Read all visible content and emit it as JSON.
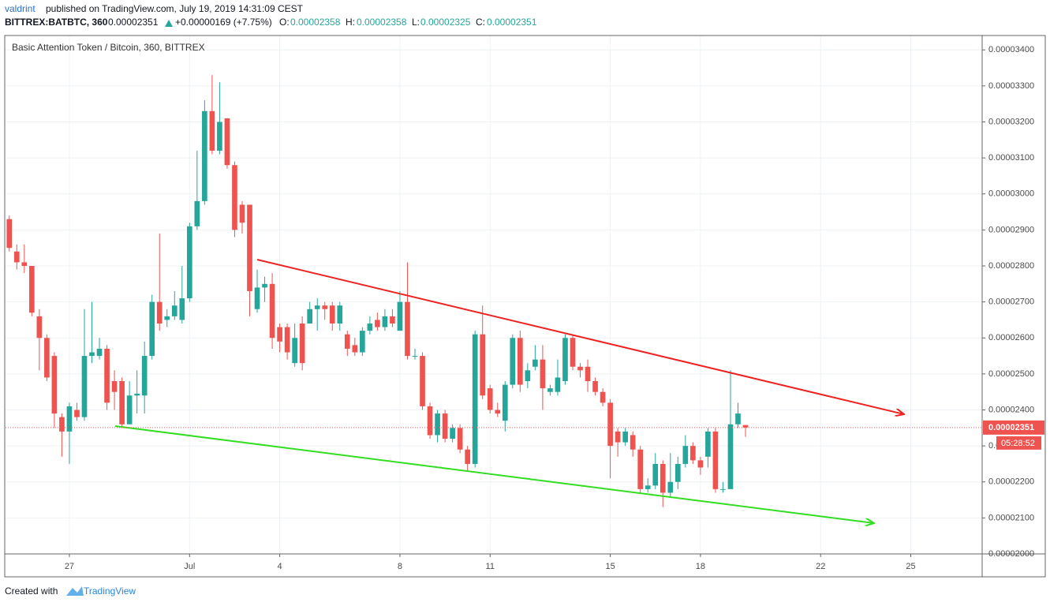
{
  "header": {
    "author": "valdrint",
    "published": "published on TradingView.com, July 19, 2019 14:31:09 CEST",
    "symbol": "BITTREX:BATBTC, 360",
    "last": "0.00002351",
    "change": "+0.00000169 (+7.75%)",
    "o_label": "O:",
    "o": "0.00002358",
    "h_label": "H:",
    "h": "0.00002358",
    "l_label": "L:",
    "l": "0.00002325",
    "c_label": "C:",
    "c": "0.00002351"
  },
  "chart_data": {
    "type": "candlestick",
    "title": "Basic Attention Token / Bitcoin, 360, BITTREX",
    "up_color": "#26a69a",
    "down_color": "#ef5350",
    "grid": true,
    "xlim": [
      -0.5,
      129.5
    ],
    "xticks": [
      {
        "value": 8,
        "label": "27"
      },
      {
        "value": 24,
        "label": "Jul"
      },
      {
        "value": 36,
        "label": "4"
      },
      {
        "value": 52,
        "label": "8"
      },
      {
        "value": 64,
        "label": "11"
      },
      {
        "value": 80,
        "label": "15"
      },
      {
        "value": 92,
        "label": "18"
      },
      {
        "value": 108,
        "label": "22"
      },
      {
        "value": 120,
        "label": "25"
      }
    ],
    "ylim": [
      2e-05,
      3.44e-05
    ],
    "yticks": [
      {
        "value": 2e-05,
        "label": "0.00002000"
      },
      {
        "value": 2.1e-05,
        "label": "0.00002100"
      },
      {
        "value": 2.2e-05,
        "label": "0.00002200"
      },
      {
        "value": 2.3e-05,
        "label": "0.00002300"
      },
      {
        "value": 2.4e-05,
        "label": "0.00002400"
      },
      {
        "value": 2.5e-05,
        "label": "0.00002500"
      },
      {
        "value": 2.6e-05,
        "label": "0.00002600"
      },
      {
        "value": 2.7e-05,
        "label": "0.00002700"
      },
      {
        "value": 2.8e-05,
        "label": "0.00002800"
      },
      {
        "value": 2.9e-05,
        "label": "0.00002900"
      },
      {
        "value": 3e-05,
        "label": "0.00003000"
      },
      {
        "value": 3.1e-05,
        "label": "0.00003100"
      },
      {
        "value": 3.2e-05,
        "label": "0.00003200"
      },
      {
        "value": 3.3e-05,
        "label": "0.00003300"
      },
      {
        "value": 3.4e-05,
        "label": "0.00003400"
      }
    ],
    "last_price": {
      "value": 2.351e-05,
      "label": "0.00002351"
    },
    "countdown": "05:28:52",
    "open": [
      2.93e-05,
      2.84e-05,
      2.81e-05,
      2.8e-05,
      2.66e-05,
      2.6e-05,
      2.55e-05,
      2.38e-05,
      2.34e-05,
      2.4e-05,
      2.38e-05,
      2.55e-05,
      2.55e-05,
      2.57e-05,
      2.48e-05,
      2.48e-05,
      2.36e-05,
      2.44e-05,
      2.44e-05,
      2.55e-05,
      2.7e-05,
      2.65e-05,
      2.66e-05,
      2.65e-05,
      2.71e-05,
      2.91e-05,
      2.98e-05,
      3.23e-05,
      3.12e-05,
      3.21e-05,
      3.08e-05,
      2.97e-05,
      2.97e-05,
      2.68e-05,
      2.74e-05,
      2.75e-05,
      2.63e-05,
      2.63e-05,
      2.53e-05,
      2.64e-05,
      2.64e-05,
      2.68e-05,
      2.69e-05,
      2.69e-05,
      2.64e-05,
      2.61e-05,
      2.58e-05,
      2.56e-05,
      2.62e-05,
      2.65e-05,
      2.63e-05,
      2.66e-05,
      2.62e-05,
      2.7e-05,
      2.55e-05,
      2.55e-05,
      2.41e-05,
      2.33e-05,
      2.39e-05,
      2.32e-05,
      2.35e-05,
      2.29e-05,
      2.25e-05,
      2.61e-05,
      2.46e-05,
      2.4e-05,
      2.37e-05,
      2.47e-05,
      2.6e-05,
      2.48e-05,
      2.52e-05,
      2.54e-05,
      2.45e-05,
      2.45e-05,
      2.48e-05,
      2.6e-05,
      2.52e-05,
      2.52e-05,
      2.48e-05,
      2.45e-05,
      2.42e-05,
      2.34e-05,
      2.31e-05,
      2.33e-05,
      2.29e-05,
      2.18e-05,
      2.19e-05,
      2.25e-05,
      2.17e-05,
      2.2e-05,
      2.25e-05,
      2.3e-05,
      2.26e-05,
      2.27e-05,
      2.34e-05,
      2.18e-05,
      2.18e-05,
      2.36e-05,
      2.358e-05
    ],
    "high": [
      2.94e-05,
      2.86e-05,
      2.86e-05,
      2.8e-05,
      2.68e-05,
      2.61e-05,
      2.56e-05,
      2.39e-05,
      2.42e-05,
      2.42e-05,
      2.68e-05,
      2.7e-05,
      2.6e-05,
      2.58e-05,
      2.51e-05,
      2.49e-05,
      2.48e-05,
      2.51e-05,
      2.59e-05,
      2.72e-05,
      2.89e-05,
      2.68e-05,
      2.73e-05,
      2.8e-05,
      2.92e-05,
      3.12e-05,
      3.26e-05,
      3.33e-05,
      3.31e-05,
      3.21e-05,
      3.09e-05,
      2.98e-05,
      2.97e-05,
      2.79e-05,
      2.77e-05,
      2.78e-05,
      2.64e-05,
      2.64e-05,
      2.64e-05,
      2.66e-05,
      2.7e-05,
      2.71e-05,
      2.7e-05,
      2.7e-05,
      2.7e-05,
      2.62e-05,
      2.6e-05,
      2.63e-05,
      2.66e-05,
      2.67e-05,
      2.68e-05,
      2.68e-05,
      2.73e-05,
      2.81e-05,
      2.57e-05,
      2.56e-05,
      2.42e-05,
      2.4e-05,
      2.4e-05,
      2.36e-05,
      2.36e-05,
      2.3e-05,
      2.62e-05,
      2.69e-05,
      2.47e-05,
      2.42e-05,
      2.48e-05,
      2.61e-05,
      2.62e-05,
      2.53e-05,
      2.58e-05,
      2.58e-05,
      2.47e-05,
      2.54e-05,
      2.61e-05,
      2.61e-05,
      2.53e-05,
      2.54e-05,
      2.49e-05,
      2.46e-05,
      2.43e-05,
      2.35e-05,
      2.35e-05,
      2.34e-05,
      2.3e-05,
      2.21e-05,
      2.28e-05,
      2.26e-05,
      2.28e-05,
      2.27e-05,
      2.33e-05,
      2.31e-05,
      2.27e-05,
      2.35e-05,
      2.35e-05,
      2.2e-05,
      2.51e-05,
      2.42e-05,
      2.358e-05
    ],
    "low": [
      2.84e-05,
      2.79e-05,
      2.78e-05,
      2.66e-05,
      2.51e-05,
      2.48e-05,
      2.35e-05,
      2.27e-05,
      2.25e-05,
      2.37e-05,
      2.37e-05,
      2.53e-05,
      2.54e-05,
      2.4e-05,
      2.4e-05,
      2.35e-05,
      2.36e-05,
      2.39e-05,
      2.39e-05,
      2.54e-05,
      2.62e-05,
      2.63e-05,
      2.65e-05,
      2.64e-05,
      2.7e-05,
      2.9e-05,
      2.97e-05,
      3.11e-05,
      3.11e-05,
      3.07e-05,
      2.88e-05,
      2.89e-05,
      2.66e-05,
      2.67e-05,
      2.7e-05,
      2.57e-05,
      2.56e-05,
      2.54e-05,
      2.52e-05,
      2.51e-05,
      2.64e-05,
      2.62e-05,
      2.65e-05,
      2.62e-05,
      2.62e-05,
      2.55e-05,
      2.55e-05,
      2.55e-05,
      2.61e-05,
      2.62e-05,
      2.62e-05,
      2.63e-05,
      2.62e-05,
      2.54e-05,
      2.54e-05,
      2.4e-05,
      2.32e-05,
      2.31e-05,
      2.31e-05,
      2.31e-05,
      2.28e-05,
      2.23e-05,
      2.24e-05,
      2.43e-05,
      2.39e-05,
      2.38e-05,
      2.34e-05,
      2.46e-05,
      2.45e-05,
      2.46e-05,
      2.51e-05,
      2.4e-05,
      2.44e-05,
      2.44e-05,
      2.47e-05,
      2.51e-05,
      2.49e-05,
      2.45e-05,
      2.44e-05,
      2.41e-05,
      2.21e-05,
      2.27e-05,
      2.3e-05,
      2.27e-05,
      2.17e-05,
      2.17e-05,
      2.18e-05,
      2.13e-05,
      2.16e-05,
      2.18e-05,
      2.24e-05,
      2.25e-05,
      2.22e-05,
      2.24e-05,
      2.17e-05,
      2.17e-05,
      2.18e-05,
      2.35e-05,
      2.325e-05
    ],
    "close": [
      2.85e-05,
      2.81e-05,
      2.8e-05,
      2.67e-05,
      2.6e-05,
      2.49e-05,
      2.39e-05,
      2.34e-05,
      2.41e-05,
      2.38e-05,
      2.55e-05,
      2.56e-05,
      2.57e-05,
      2.42e-05,
      2.45e-05,
      2.36e-05,
      2.44e-05,
      2.445e-05,
      2.55e-05,
      2.7e-05,
      2.64e-05,
      2.66e-05,
      2.69e-05,
      2.71e-05,
      2.91e-05,
      2.98e-05,
      3.23e-05,
      3.12e-05,
      3.2e-05,
      3.08e-05,
      2.9e-05,
      2.92e-05,
      2.73e-05,
      2.74e-05,
      2.75e-05,
      2.6e-05,
      2.59e-05,
      2.56e-05,
      2.6e-05,
      2.53e-05,
      2.68e-05,
      2.69e-05,
      2.68e-05,
      2.64e-05,
      2.69e-05,
      2.57e-05,
      2.56e-05,
      2.62e-05,
      2.64e-05,
      2.63e-05,
      2.66e-05,
      2.64e-05,
      2.7e-05,
      2.55e-05,
      2.55e-05,
      2.41e-05,
      2.33e-05,
      2.39e-05,
      2.32e-05,
      2.35e-05,
      2.29e-05,
      2.25e-05,
      2.61e-05,
      2.44e-05,
      2.4e-05,
      2.39e-05,
      2.47e-05,
      2.6e-05,
      2.47e-05,
      2.51e-05,
      2.54e-05,
      2.46e-05,
      2.46e-05,
      2.49e-05,
      2.6e-05,
      2.52e-05,
      2.51e-05,
      2.48e-05,
      2.45e-05,
      2.42e-05,
      2.3e-05,
      2.31e-05,
      2.34e-05,
      2.29e-05,
      2.18e-05,
      2.19e-05,
      2.25e-05,
      2.17e-05,
      2.2e-05,
      2.25e-05,
      2.3e-05,
      2.26e-05,
      2.24e-05,
      2.34e-05,
      2.18e-05,
      2.18e-05,
      2.36e-05,
      2.39e-05,
      2.351e-05
    ]
  },
  "footer": {
    "created": "Created with",
    "brand": "TradingView"
  }
}
